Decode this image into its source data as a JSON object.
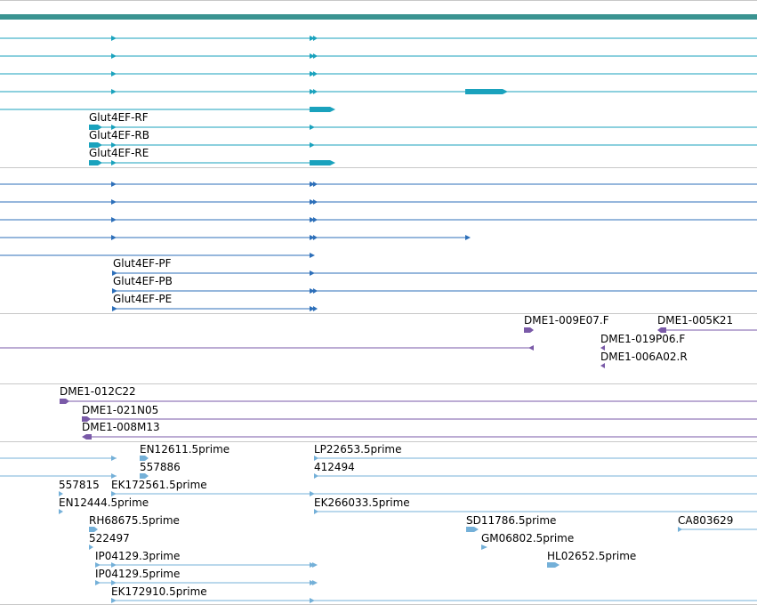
{
  "colors": {
    "top_bar": "#3a9391",
    "transcript_rna": "#1aa2bd",
    "transcript_protein": "#2d6fb9",
    "est_clone": "#7a5aa8",
    "est_read": "#74b0d8",
    "divider": "#c8c8c8"
  },
  "labels": {
    "rna_f": "Glut4EF-RF",
    "rna_b": "Glut4EF-RB",
    "rna_e": "Glut4EF-RE",
    "pep_f": "Glut4EF-PF",
    "pep_b": "Glut4EF-PB",
    "pep_e": "Glut4EF-PE",
    "c_009e07": "DME1-009E07.F",
    "c_005k21": "DME1-005K21",
    "c_019p06": "DME1-019P06.F",
    "c_006a02": "DME1-006A02.R",
    "c_012c22": "DME1-012C22",
    "c_021n05": "DME1-021N05",
    "c_008m13": "DME1-008M13",
    "e_en12611": "EN12611.5prime",
    "e_lp22653": "LP22653.5prime",
    "e_557886": "557886",
    "e_412494": "412494",
    "e_557815": "557815",
    "e_ek172561": "EK172561.5prime",
    "e_en12444": "EN12444.5prime",
    "e_ek266033": "EK266033.5prime",
    "e_rh68675": "RH68675.5prime",
    "e_sd11786": "SD11786.5prime",
    "e_ca803629": "CA803629",
    "e_522497": "522497",
    "e_gm06802": "GM06802.5prime",
    "e_ip04129_3": "IP04129.3prime",
    "e_hl02652": "HL02652.5prime",
    "e_ip04129_5": "IP04129.5prime",
    "e_ek172910": "EK172910.5prime"
  }
}
